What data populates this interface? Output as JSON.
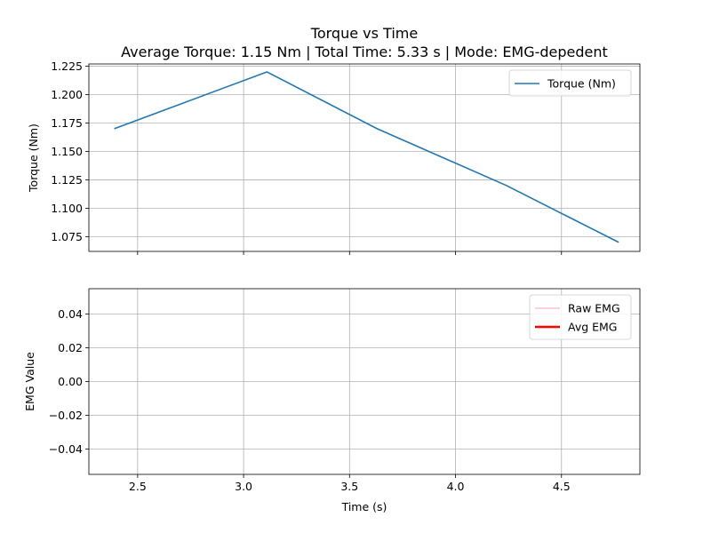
{
  "figure": {
    "title_line1": "Torque vs Time",
    "title_line2": "Average Torque: 1.15 Nm | Total Time: 5.33 s | Mode: EMG-depedent"
  },
  "chart_data": [
    {
      "type": "line",
      "ylabel": "Torque (Nm)",
      "xlim": [
        2.27,
        4.87
      ],
      "ylim": [
        1.062,
        1.227
      ],
      "xticks": [
        2.5,
        3.0,
        3.5,
        4.0,
        4.5
      ],
      "xtick_labels_shown": false,
      "yticks": [
        1.075,
        1.1,
        1.125,
        1.15,
        1.175,
        1.2,
        1.225
      ],
      "ytick_labels": [
        "1.075",
        "1.100",
        "1.125",
        "1.150",
        "1.175",
        "1.200",
        "1.225"
      ],
      "grid": true,
      "legend": "top-right",
      "series": [
        {
          "name": "Torque (Nm)",
          "color": "#1f77b4",
          "x": [
            2.39,
            3.11,
            3.63,
            4.24,
            4.77
          ],
          "y": [
            1.17,
            1.22,
            1.17,
            1.12,
            1.07
          ]
        }
      ]
    },
    {
      "type": "line",
      "xlabel": "Time (s)",
      "ylabel": "EMG Value",
      "xlim": [
        2.27,
        4.87
      ],
      "ylim": [
        -0.055,
        0.055
      ],
      "xticks": [
        2.5,
        3.0,
        3.5,
        4.0,
        4.5
      ],
      "xtick_labels": [
        "2.5",
        "3.0",
        "3.5",
        "4.0",
        "4.5"
      ],
      "yticks": [
        -0.04,
        -0.02,
        0.0,
        0.02,
        0.04
      ],
      "ytick_labels": [
        "−0.04",
        "−0.02",
        "0.00",
        "0.02",
        "0.04"
      ],
      "grid": true,
      "legend": "top-right",
      "series": [
        {
          "name": "Raw EMG",
          "color": "#ffc0cb",
          "x": [],
          "y": []
        },
        {
          "name": "Avg EMG",
          "color": "#ff0000",
          "x": [],
          "y": []
        }
      ]
    }
  ]
}
